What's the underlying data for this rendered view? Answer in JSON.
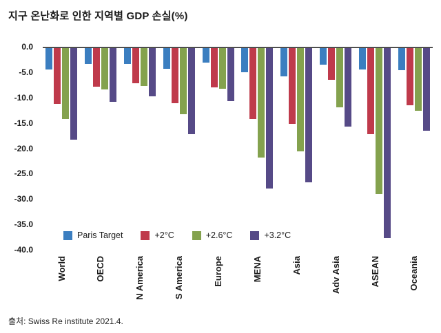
{
  "chart_data": {
    "type": "bar",
    "title": "지구 온난화로 인한 지역별 GDP 손실(%)",
    "xlabel": "",
    "ylabel": "",
    "ylim": [
      -40,
      0
    ],
    "grid": false,
    "legend_position": "inside-bottom-left",
    "yticks": [
      "0.0",
      "-5.0",
      "-10.0",
      "-15.0",
      "-20.0",
      "-25.0",
      "-30.0",
      "-35.0",
      "-40.0"
    ],
    "categories": [
      "World",
      "OECD",
      "N America",
      "S America",
      "Europe",
      "MENA",
      "Asia",
      "Adv Asia",
      "ASEAN",
      "Oceania"
    ],
    "series": [
      {
        "name": "Paris Target",
        "color": "#3B7EC0",
        "values": [
          -4.2,
          -3.1,
          -3.1,
          -4.1,
          -2.8,
          -4.7,
          -5.5,
          -3.3,
          -4.2,
          -4.3
        ]
      },
      {
        "name": "+2°C",
        "color": "#BF3A4B",
        "values": [
          -11.0,
          -7.6,
          -6.9,
          -10.8,
          -7.7,
          -14.0,
          -14.9,
          -6.2,
          -17.0,
          -11.2
        ]
      },
      {
        "name": "+2.6°C",
        "color": "#84A24E",
        "values": [
          -13.9,
          -8.1,
          -7.4,
          -13.0,
          -8.0,
          -21.5,
          -20.4,
          -11.7,
          -28.7,
          -12.3
        ]
      },
      {
        "name": "+3.2°C",
        "color": "#564A87",
        "values": [
          -18.1,
          -10.6,
          -9.5,
          -17.0,
          -10.5,
          -27.6,
          -26.5,
          -15.4,
          -37.4,
          -16.3
        ]
      }
    ]
  },
  "source": "출처: Swiss Re institute 2021.4."
}
